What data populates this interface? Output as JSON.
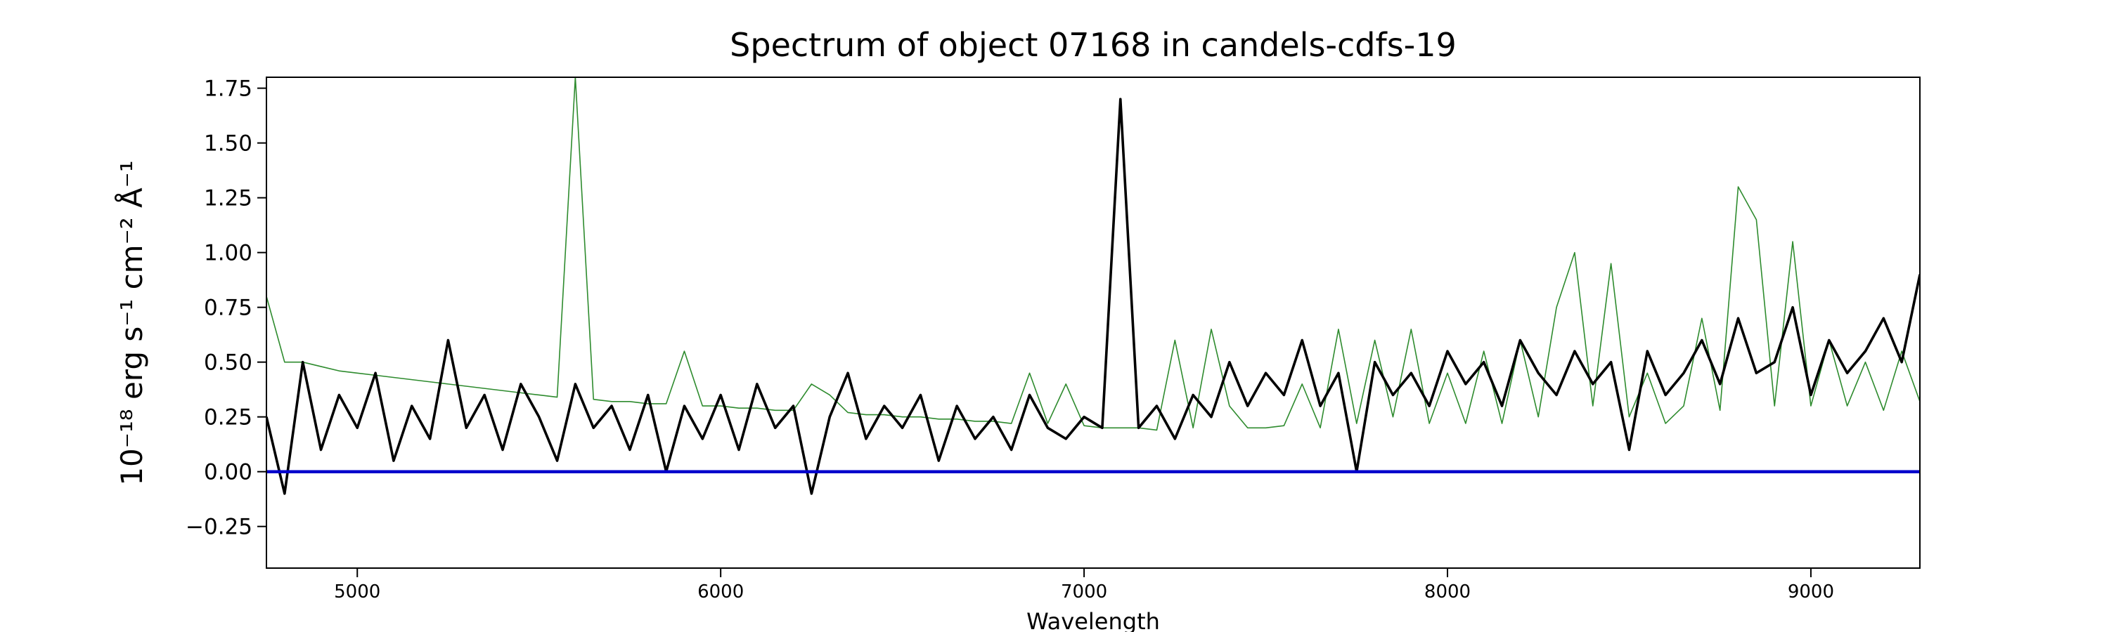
{
  "chart_data": {
    "type": "line",
    "title": "Spectrum of object 07168 in candels-cdfs-19",
    "xlabel": "Wavelength",
    "ylabel": "10⁻¹⁸ erg s⁻¹ cm⁻² Å⁻¹",
    "xlim": [
      4750,
      9300
    ],
    "ylim": [
      -0.44,
      1.8
    ],
    "xticks": [
      5000,
      6000,
      7000,
      8000,
      9000
    ],
    "yticks": [
      {
        "value": -0.25,
        "label": "−0.25"
      },
      {
        "value": 0,
        "label": "0.00"
      },
      {
        "value": 0.25,
        "label": "0.25"
      },
      {
        "value": 0.5,
        "label": "0.50"
      },
      {
        "value": 0.75,
        "label": "0.75"
      },
      {
        "value": 1,
        "label": "1.00"
      },
      {
        "value": 1.25,
        "label": "1.25"
      },
      {
        "value": 1.5,
        "label": "1.50"
      },
      {
        "value": 1.75,
        "label": "1.75"
      }
    ],
    "grid": false,
    "x": [
      4750,
      4800,
      4850,
      4900,
      4950,
      5000,
      5050,
      5100,
      5150,
      5200,
      5250,
      5300,
      5350,
      5400,
      5450,
      5500,
      5550,
      5600,
      5650,
      5700,
      5750,
      5800,
      5850,
      5900,
      5950,
      6000,
      6050,
      6100,
      6150,
      6200,
      6250,
      6300,
      6350,
      6400,
      6450,
      6500,
      6550,
      6600,
      6650,
      6700,
      6750,
      6800,
      6850,
      6900,
      6950,
      7000,
      7050,
      7100,
      7150,
      7200,
      7250,
      7300,
      7350,
      7400,
      7450,
      7500,
      7550,
      7600,
      7650,
      7700,
      7750,
      7800,
      7850,
      7900,
      7950,
      8000,
      8050,
      8100,
      8150,
      8200,
      8250,
      8300,
      8350,
      8400,
      8450,
      8500,
      8550,
      8600,
      8650,
      8700,
      8750,
      8800,
      8850,
      8900,
      8950,
      9000,
      9050,
      9100,
      9150,
      9200,
      9250,
      9300
    ],
    "series": [
      {
        "color": "#2e8b2e",
        "width": 1.6,
        "values": [
          0.8,
          0.5,
          0.5,
          0.48,
          0.46,
          0.45,
          0.44,
          0.43,
          0.42,
          0.41,
          0.4,
          0.39,
          0.38,
          0.37,
          0.36,
          0.35,
          0.34,
          1.8,
          0.33,
          0.32,
          0.32,
          0.31,
          0.31,
          0.55,
          0.3,
          0.3,
          0.29,
          0.29,
          0.28,
          0.28,
          0.4,
          0.35,
          0.27,
          0.26,
          0.26,
          0.25,
          0.25,
          0.24,
          0.24,
          0.23,
          0.23,
          0.22,
          0.45,
          0.22,
          0.4,
          0.21,
          0.2,
          0.2,
          0.2,
          0.19,
          0.6,
          0.2,
          0.65,
          0.3,
          0.2,
          0.2,
          0.21,
          0.4,
          0.2,
          0.65,
          0.22,
          0.6,
          0.25,
          0.65,
          0.22,
          0.45,
          0.22,
          0.55,
          0.22,
          0.6,
          0.25,
          0.75,
          1.0,
          0.3,
          0.95,
          0.25,
          0.45,
          0.22,
          0.3,
          0.7,
          0.28,
          1.3,
          1.15,
          0.3,
          1.05,
          0.3,
          0.6,
          0.3,
          0.5,
          0.28,
          0.55,
          0.32
        ]
      },
      {
        "color": "#000000",
        "width": 3.6,
        "values": [
          0.25,
          -0.1,
          0.5,
          0.1,
          0.35,
          0.2,
          0.45,
          0.05,
          0.3,
          0.15,
          0.6,
          0.2,
          0.35,
          0.1,
          0.4,
          0.25,
          0.05,
          0.4,
          0.2,
          0.3,
          0.1,
          0.35,
          0.0,
          0.3,
          0.15,
          0.35,
          0.1,
          0.4,
          0.2,
          0.3,
          -0.1,
          0.25,
          0.45,
          0.15,
          0.3,
          0.2,
          0.35,
          0.05,
          0.3,
          0.15,
          0.25,
          0.1,
          0.35,
          0.2,
          0.15,
          0.25,
          0.2,
          1.7,
          0.2,
          0.3,
          0.15,
          0.35,
          0.25,
          0.5,
          0.3,
          0.45,
          0.35,
          0.6,
          0.3,
          0.45,
          0.0,
          0.5,
          0.35,
          0.45,
          0.3,
          0.55,
          0.4,
          0.5,
          0.3,
          0.6,
          0.45,
          0.35,
          0.55,
          0.4,
          0.5,
          0.1,
          0.55,
          0.35,
          0.45,
          0.6,
          0.4,
          0.7,
          0.45,
          0.5,
          0.75,
          0.35,
          0.6,
          0.45,
          0.55,
          0.7,
          0.5,
          0.9
        ]
      }
    ],
    "hlines": [
      {
        "y": 0,
        "color": "#0000cc"
      }
    ]
  }
}
